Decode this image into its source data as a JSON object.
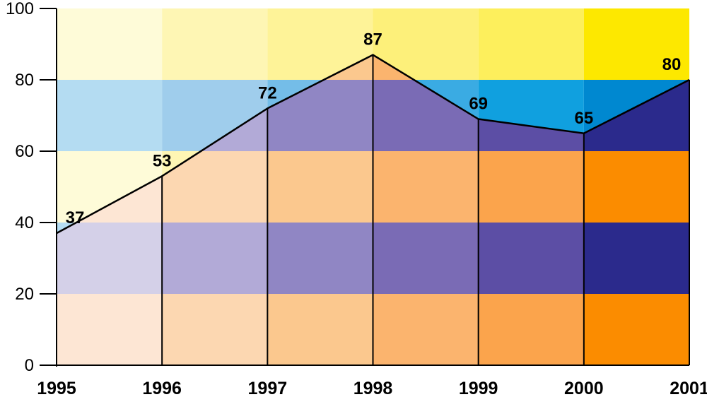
{
  "chart_data": {
    "type": "area",
    "title": "",
    "xlabel": "",
    "ylabel": "",
    "x": [
      "1995",
      "1996",
      "1997",
      "1998",
      "1999",
      "2000",
      "2001"
    ],
    "values": [
      37,
      53,
      72,
      87,
      69,
      65,
      80
    ],
    "data_labels": [
      "37",
      "53",
      "72",
      "87",
      "69",
      "65",
      "80"
    ],
    "ylim": [
      0,
      100
    ],
    "yticks": [
      0,
      20,
      40,
      60,
      80,
      100
    ],
    "ytick_labels": [
      "0",
      "20",
      "40",
      "60",
      "80",
      "100"
    ],
    "grid": false,
    "legend": "none",
    "colors": {
      "line": "#000000",
      "below_bands_alternating": {
        "orange_scale": [
          "#fde6d4",
          "#fcd7b1",
          "#fbc88e",
          "#fbb46e",
          "#fba44c",
          "#fb8c00"
        ],
        "purple_scale": [
          "#d4d0e8",
          "#b2aad7",
          "#9086c4",
          "#7a6bb5",
          "#5c4ea5",
          "#2b2a8c"
        ]
      },
      "above_bands_alternating": {
        "yellow_scale": [
          "#fefbd8",
          "#fef6b4",
          "#fef398",
          "#fdf07a",
          "#fdef5c",
          "#fde800"
        ],
        "blue_scale": [
          "#b4dcf2",
          "#9fcdec",
          "#74bde8",
          "#3aabe3",
          "#10a0df",
          "#0088d0"
        ]
      }
    }
  }
}
